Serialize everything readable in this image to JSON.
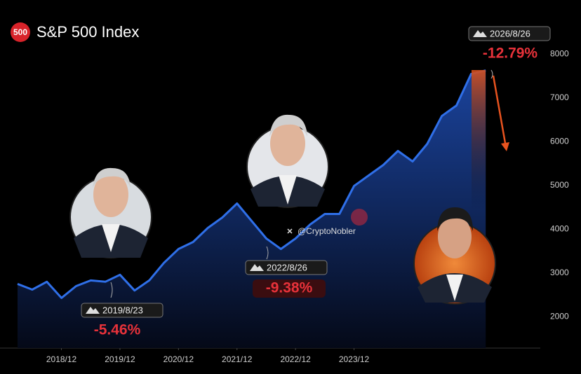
{
  "chart_data": {
    "type": "line",
    "badge": "500",
    "title": "S&P 500 Index",
    "categories": [
      null,
      null,
      null,
      "2018/12",
      null,
      null,
      null,
      "2019/12",
      null,
      null,
      null,
      "2020/12",
      null,
      null,
      null,
      "2021/12",
      null,
      null,
      null,
      "2022/12",
      null,
      null,
      null,
      "2023/12",
      null,
      null,
      null,
      null,
      null,
      null,
      null,
      null,
      null
    ],
    "series": [
      {
        "name": "S&P 500",
        "color": "#2f6fe8",
        "values": [
          2750,
          2620,
          2800,
          2430,
          2700,
          2830,
          2800,
          2960,
          2600,
          2830,
          3230,
          3550,
          3710,
          4030,
          4270,
          4590,
          4190,
          3790,
          3550,
          3790,
          4110,
          4350,
          4350,
          4990,
          5230,
          5470,
          5790,
          5550,
          5950,
          6590,
          6830,
          7550,
          7630
        ]
      }
    ],
    "ylim": [
      1300,
      8600
    ],
    "yticks": [
      2000,
      3000,
      4000,
      5000,
      6000,
      7000,
      8000
    ],
    "annotations": [
      {
        "date": "2019/8/23",
        "change": "-5.46%"
      },
      {
        "date": "2022/8/26",
        "change": "-9.38%"
      },
      {
        "date": "2026/8/26",
        "change": "-12.79%"
      }
    ],
    "handle": "@CryptoNobler"
  }
}
